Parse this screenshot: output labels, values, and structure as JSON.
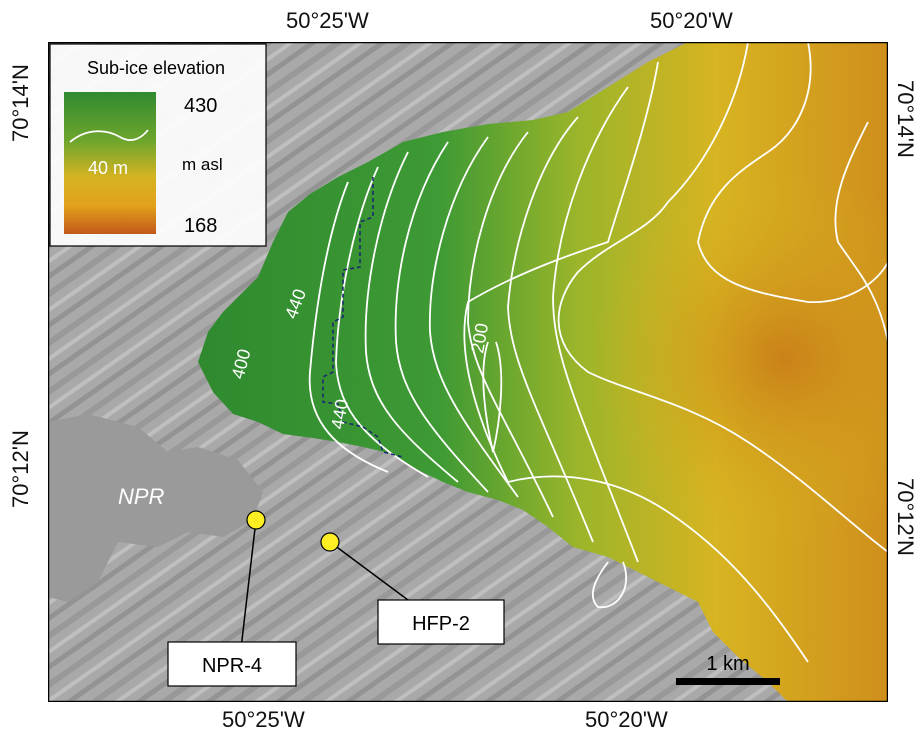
{
  "axes": {
    "top": [
      "50°25'W",
      "50°20'W"
    ],
    "bottom": [
      "50°25'W",
      "50°20'W"
    ],
    "left": [
      "70°14'N",
      "70°12'N"
    ],
    "right": [
      "70°14'N",
      "70°12'N"
    ]
  },
  "legend": {
    "title": "Sub-ice elevation",
    "max": "430",
    "min": "168",
    "unit": "m asl",
    "contour_interval": "40 m",
    "gradient_colors": [
      "#2f8a2f",
      "#7fae2e",
      "#d6b321",
      "#e2a11b",
      "#c9621a"
    ]
  },
  "contour_labels": [
    "440",
    "400",
    "440",
    "200"
  ],
  "place_label": "NPR",
  "sites": [
    {
      "name": "NPR-4",
      "color": "#ffee22"
    },
    {
      "name": "HFP-2",
      "color": "#ffee22"
    }
  ],
  "scalebar": {
    "label": "1 km"
  },
  "colors": {
    "terrain": "#a6a6a6",
    "lake": "#9b9b9b",
    "ice_green": "#3e9a34",
    "ice_yellow": "#d8b21f",
    "ice_orange": "#d2901b",
    "contour": "#ffffff",
    "boundary": "#1c2a6e"
  }
}
